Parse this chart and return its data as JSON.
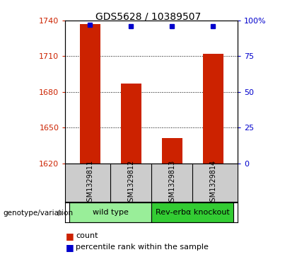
{
  "title": "GDS5628 / 10389507",
  "samples": [
    "GSM1329811",
    "GSM1329812",
    "GSM1329813",
    "GSM1329814"
  ],
  "counts": [
    1737,
    1687,
    1641,
    1712
  ],
  "percentile_ranks": [
    97,
    96,
    96,
    96
  ],
  "ylim_left": [
    1620,
    1740
  ],
  "ylim_right": [
    0,
    100
  ],
  "yticks_left": [
    1620,
    1650,
    1680,
    1710,
    1740
  ],
  "yticks_right": [
    0,
    25,
    50,
    75,
    100
  ],
  "bar_color": "#cc2200",
  "point_color": "#0000cc",
  "groups": [
    {
      "label": "wild type",
      "samples": [
        0,
        1
      ],
      "color": "#99ee99"
    },
    {
      "label": "Rev-erbα knockout",
      "samples": [
        2,
        3
      ],
      "color": "#33cc33"
    }
  ],
  "legend_count_label": "count",
  "legend_pct_label": "percentile rank within the sample",
  "xlabel_group": "genotype/variation",
  "bg_plot": "#ffffff",
  "bg_sample_cells": "#cccccc"
}
